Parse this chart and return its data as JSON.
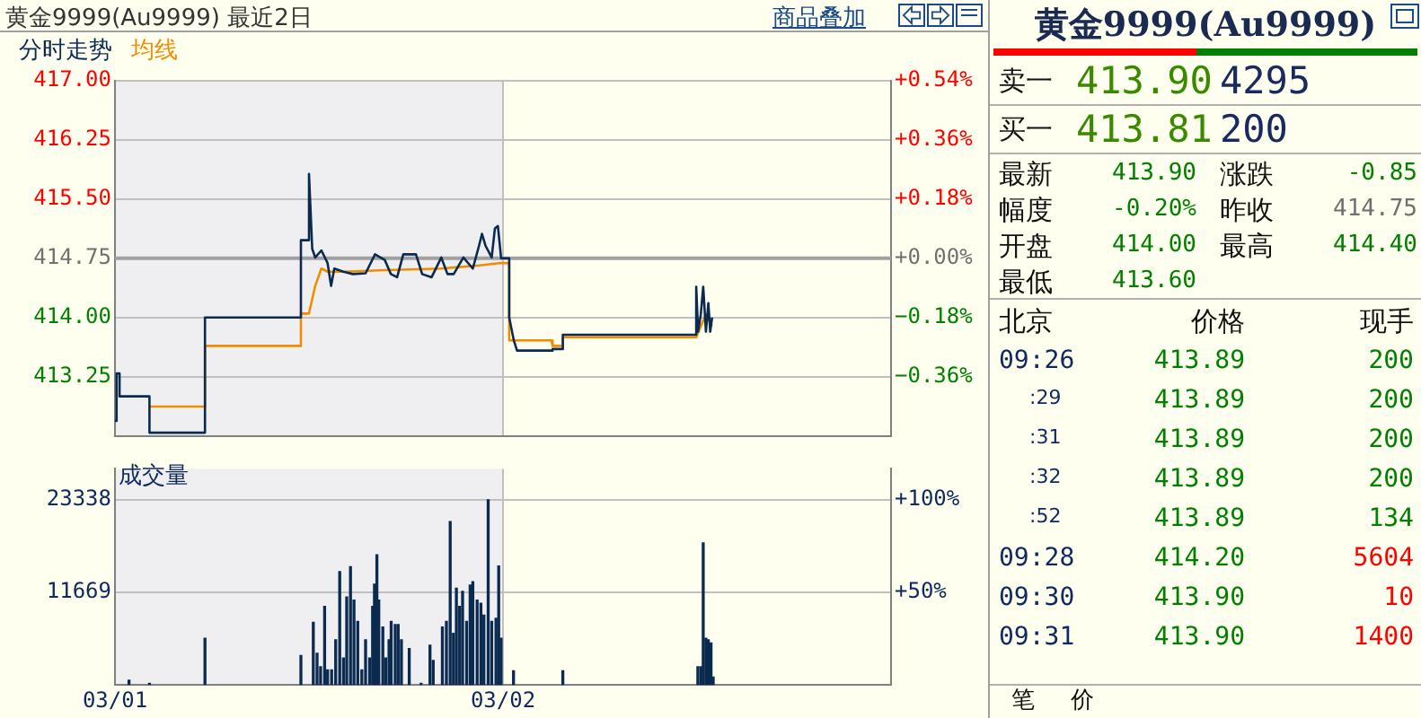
{
  "chart_data": [
    {
      "type": "line",
      "title": "黄金9999(Au9999) 最近2日",
      "annotations": [
        "商品叠加"
      ],
      "legend": "top left",
      "grid": true,
      "tick_labels": "y",
      "xlim": [
        "--03-01",
        "--03-03"
      ],
      "xticks": [
        "--03-01",
        "--03-02"
      ],
      "ylim": [
        412.5,
        417
      ],
      "yticks": [
        {
          "value": 413.25,
          "label": "413.25"
        },
        {
          "value": 414,
          "label": "414.00"
        },
        {
          "value": 414.75,
          "label": "414.75"
        },
        {
          "value": 415.5,
          "label": "415.50"
        },
        {
          "value": 416.25,
          "label": "416.25"
        },
        {
          "value": 417,
          "label": "417.00"
        }
      ],
      "y2lim": [
        -0.54,
        0.54
      ],
      "y2ticks": [
        {
          "value": -0.36,
          "label": "−0.36%"
        },
        {
          "value": -0.18,
          "label": "−0.18%"
        },
        {
          "value": 0,
          "label": "+0.00%"
        },
        {
          "value": 0.18,
          "label": "+0.18%"
        },
        {
          "value": 0.36,
          "label": "+0.36%"
        },
        {
          "value": 0.54,
          "label": "+0.54%"
        }
      ],
      "ref_lines": [
        {
          "axis": "y",
          "value": 414.75,
          "color": "#a0a0a0"
        }
      ],
      "bands": [
        {
          "axis": "x",
          "from": "--03-01",
          "to": "--03-02",
          "color": "#efeff2"
        }
      ],
      "series": [
        {
          "name": "分时走势",
          "color": "#0a2a50",
          "x": [
            "--03-01T00:00",
            "--03-01T00:06",
            "--03-01T00:17",
            "--03-01T00:17",
            "--03-01T02:08",
            "--03-01T02:08",
            "--03-01T05:34",
            "--03-01T05:34",
            "--03-01T11:30",
            "--03-01T11:30",
            "--03-01T12:00",
            "--03-01T12:00",
            "--03-01T12:12",
            "--03-01T12:23",
            "--03-01T12:46",
            "--03-01T13:09",
            "--03-01T13:22",
            "--03-01T13:34",
            "--03-01T14:08",
            "--03-01T14:43",
            "--03-01T15:30",
            "--03-01T16:05",
            "--03-01T16:41",
            "--03-01T17:04",
            "--03-01T17:27",
            "--03-01T17:50",
            "--03-01T18:14",
            "--03-01T18:37",
            "--03-01T19:00",
            "--03-01T19:35",
            "--03-01T20:11",
            "--03-01T20:34",
            "--03-01T20:57",
            "--03-01T21:33",
            "--03-01T22:08",
            "--03-01T22:31",
            "--03-01T22:42",
            "--03-01T22:55",
            "--03-01T23:18",
            "--03-01T23:30",
            "--03-01T23:41",
            "--03-01T23:53",
            "--03-02T00:23",
            "--03-02T00:23",
            "--03-02T00:40",
            "--03-02T00:52",
            "--03-02T03:00",
            "--03-02T03:04",
            "--03-02T03:42",
            "--03-02T03:42",
            "--03-02T11:57",
            "--03-02T11:57",
            "--03-02T12:04",
            "--03-02T12:14",
            "--03-02T12:23",
            "--03-02T12:33",
            "--03-02T12:42",
            "--03-02T12:49",
            "--03-02T12:56"
          ],
          "values": [
            412.69,
            413.29,
            413.29,
            413.0,
            413.0,
            412.54,
            412.54,
            414.0,
            414.0,
            414.98,
            414.98,
            415.82,
            414.87,
            414.76,
            414.85,
            414.69,
            414.4,
            414.62,
            414.58,
            414.55,
            414.56,
            414.8,
            414.73,
            414.55,
            414.51,
            414.8,
            414.8,
            414.8,
            414.55,
            414.51,
            414.76,
            414.55,
            414.55,
            414.76,
            414.62,
            414.91,
            415.06,
            414.91,
            414.76,
            415.13,
            415.16,
            414.75,
            414.75,
            414.0,
            413.71,
            413.58,
            413.58,
            413.6,
            413.6,
            413.78,
            413.78,
            414.39,
            413.82,
            414.04,
            414.39,
            413.82,
            414.18,
            413.82,
            414.0
          ]
        },
        {
          "name": "均线",
          "color": "#f08c00",
          "x": [
            "--03-01T02:08",
            "--03-01T05:34",
            "--03-01T05:34",
            "--03-01T11:30",
            "--03-01T11:30",
            "--03-01T12:00",
            "--03-01T12:23",
            "--03-01T12:46",
            "--03-01T13:09",
            "--03-01T14:08",
            "--03-01T16:41",
            "--03-01T20:11",
            "--03-01T22:31",
            "--03-01T23:53",
            "--03-02T00:23",
            "--03-02T00:23",
            "--03-02T03:00",
            "--03-02T03:04",
            "--03-02T03:42",
            "--03-02T03:42",
            "--03-02T11:57",
            "--03-02T12:33",
            "--03-02T12:56"
          ],
          "values": [
            412.87,
            412.87,
            413.64,
            413.64,
            414.05,
            414.05,
            414.4,
            414.62,
            414.58,
            414.58,
            414.6,
            414.62,
            414.66,
            414.69,
            414.69,
            413.71,
            413.71,
            413.64,
            413.64,
            413.75,
            413.75,
            414.04,
            413.89
          ]
        }
      ]
    },
    {
      "type": "bar",
      "title": "成交量",
      "color": "#0a2a50",
      "grid": true,
      "xlim": [
        "--03-01",
        "--03-03"
      ],
      "xticks": [
        {
          "value": "--03-01",
          "label": "03/01"
        },
        {
          "value": "--03-02",
          "label": "03/02"
        }
      ],
      "ylim": [
        0,
        27240
      ],
      "yticks": [
        11669,
        23338
      ],
      "y2lim": [
        0,
        116.7
      ],
      "y2ticks": [
        {
          "value": 50,
          "label": "+50%"
        },
        {
          "value": 100,
          "label": "+100%"
        }
      ],
      "bands": [
        {
          "axis": "x",
          "from": "--03-01",
          "to": "--03-02",
          "color": "#efeff2"
        }
      ],
      "x": [
        "--03-01T00:52",
        "--03-01T02:08",
        "--03-01T05:34",
        "--03-01T11:30",
        "--03-01T12:16",
        "--03-01T12:30",
        "--03-01T12:43",
        "--03-01T12:58",
        "--03-01T13:09",
        "--03-01T13:24",
        "--03-01T13:39",
        "--03-01T13:54",
        "--03-01T14:08",
        "--03-01T14:20",
        "--03-01T14:34",
        "--03-01T14:47",
        "--03-01T15:01",
        "--03-01T15:16",
        "--03-01T15:30",
        "--03-01T15:45",
        "--03-01T15:56",
        "--03-01T16:03",
        "--03-01T16:12",
        "--03-01T16:19",
        "--03-01T16:34",
        "--03-01T16:45",
        "--03-01T16:57",
        "--03-01T17:05",
        "--03-01T17:20",
        "--03-01T17:31",
        "--03-01T17:43",
        "--03-01T18:12",
        "--03-01T18:56",
        "--03-01T19:29",
        "--03-01T19:41",
        "--03-01T20:15",
        "--03-01T20:30",
        "--03-01T20:44",
        "--03-01T20:56",
        "--03-01T21:07",
        "--03-01T21:19",
        "--03-01T21:30",
        "--03-01T21:45",
        "--03-01T21:58",
        "--03-01T22:08",
        "--03-01T22:24",
        "--03-01T22:38",
        "--03-01T22:49",
        "--03-01T23:05",
        "--03-01T23:18",
        "--03-01T23:34",
        "--03-01T23:44",
        "--03-01T23:53",
        "--03-02T00:39",
        "--03-02T03:42",
        "--03-02T12:03",
        "--03-02T12:14",
        "--03-02T12:23",
        "--03-02T12:33",
        "--03-02T12:42",
        "--03-02T12:52",
        "--03-02T13:00"
      ],
      "values": [
        600,
        200,
        5900,
        3700,
        7900,
        4000,
        2300,
        9900,
        1900,
        1900,
        5700,
        14300,
        3400,
        11100,
        14900,
        10700,
        8000,
        1900,
        5700,
        3400,
        9900,
        12700,
        16400,
        10700,
        7300,
        3400,
        5700,
        8000,
        7600,
        7600,
        5700,
        4600,
        200,
        5000,
        3100,
        7300,
        8000,
        20600,
        6500,
        12200,
        9900,
        11800,
        8000,
        12600,
        13000,
        10700,
        10300,
        8800,
        23338,
        8000,
        8400,
        15000,
        5900,
        1800,
        1800,
        2300,
        2300,
        17900,
        5900,
        5700,
        5300,
        1000
      ]
    },
    {
      "type": "other",
      "title": "黄金9999(Au9999)",
      "annotations": [
        "卖一",
        "413.90",
        "4295",
        "买一",
        "413.81",
        "200",
        "最新",
        "413.90",
        "涨跌",
        "-0.85",
        "幅度",
        "-0.20%",
        "昨收",
        "414.75",
        "开盘",
        "414.00",
        "最高",
        "414.40",
        "最低",
        "413.60",
        "北京",
        "价格",
        "现手",
        "09:26",
        "413.89",
        "200",
        ":29",
        "413.89",
        "200",
        ":31",
        "413.89",
        "200",
        ":32",
        "413.89",
        "200",
        ":52",
        "413.89",
        "134",
        "09:28",
        "414.20",
        "5604",
        "09:30",
        "413.90",
        "10",
        "09:31",
        "413.90",
        "1400",
        "笔",
        "价"
      ]
    }
  ]
}
